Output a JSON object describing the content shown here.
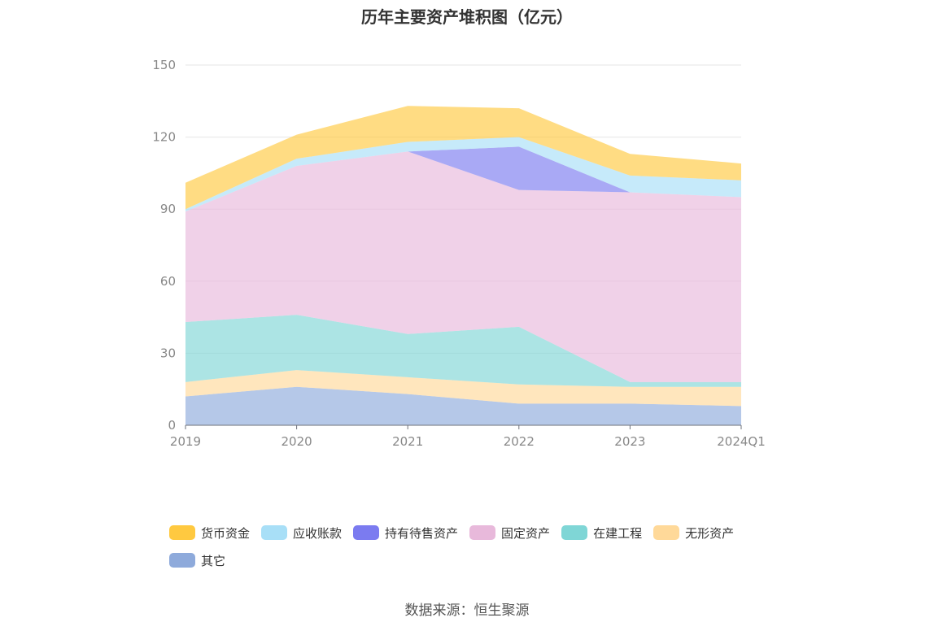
{
  "chart_data": {
    "type": "area",
    "stacked": true,
    "title": "历年主要资产堆积图（亿元）",
    "x": [
      "2019",
      "2020",
      "2021",
      "2022",
      "2023",
      "2024Q1"
    ],
    "ylim": [
      0,
      150
    ],
    "yticks": [
      0,
      30,
      60,
      90,
      120,
      150
    ],
    "grid": true,
    "legend_position": "bottom",
    "series": [
      {
        "name": "其它",
        "color": "#8EAADB",
        "values": [
          12,
          16,
          13,
          9,
          9,
          8
        ]
      },
      {
        "name": "无形资产",
        "color": "#FFD999",
        "values": [
          6,
          7,
          7,
          8,
          7,
          8
        ]
      },
      {
        "name": "在建工程",
        "color": "#7FD6D6",
        "values": [
          25,
          23,
          18,
          24,
          2,
          2
        ]
      },
      {
        "name": "固定资产",
        "color": "#E8B9DB",
        "values": [
          46,
          62,
          76,
          57,
          79,
          77
        ]
      },
      {
        "name": "持有待售资产",
        "color": "#7B7BF0",
        "values": [
          0,
          0,
          0,
          18,
          0,
          0
        ]
      },
      {
        "name": "应收账款",
        "color": "#A8DFF7",
        "values": [
          1,
          3,
          4,
          4,
          7,
          7
        ]
      },
      {
        "name": "货币资金",
        "color": "#FFC940",
        "values": [
          11,
          10,
          15,
          12,
          9,
          7
        ]
      }
    ],
    "legend_order": [
      "货币资金",
      "应收账款",
      "持有待售资产",
      "固定资产",
      "在建工程",
      "无形资产",
      "其它"
    ]
  },
  "source": "数据来源：恒生聚源"
}
